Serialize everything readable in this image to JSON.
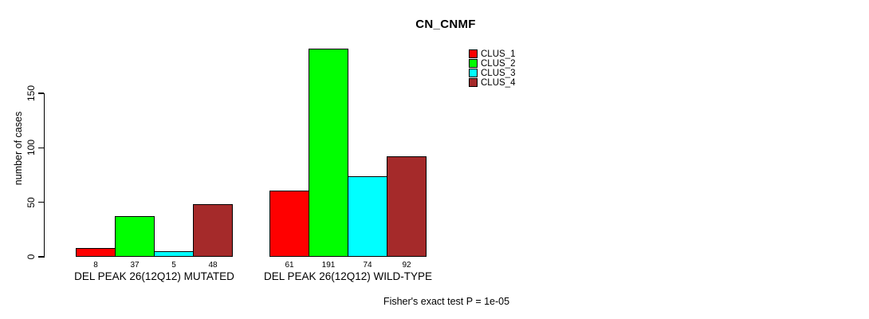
{
  "chart_data": {
    "type": "bar",
    "title": "CN_CNMF",
    "ylabel": "number of cases",
    "xlabel": "",
    "categories": [
      "DEL PEAK 26(12Q12) MUTATED",
      "DEL PEAK 26(12Q12) WILD-TYPE"
    ],
    "series": [
      {
        "name": "CLUS_1",
        "color": "#ff0000",
        "values": [
          8,
          61
        ]
      },
      {
        "name": "CLUS_2",
        "color": "#00ff00",
        "values": [
          37,
          191
        ]
      },
      {
        "name": "CLUS_3",
        "color": "#00ffff",
        "values": [
          5,
          74
        ]
      },
      {
        "name": "CLUS_4",
        "color": "#a52a2a",
        "values": [
          48,
          92
        ]
      }
    ],
    "bar_value_labels": [
      [
        8,
        37,
        5,
        48
      ],
      [
        61,
        191,
        74,
        92
      ]
    ],
    "yticks": [
      0,
      50,
      100,
      150
    ],
    "ylim": [
      0,
      201
    ],
    "grid": false,
    "legend_position": "top-right-inside",
    "bar_border_color": "#000000",
    "axis_color": "#000000",
    "annotation": "Fisher's exact test P = 1e-05"
  }
}
